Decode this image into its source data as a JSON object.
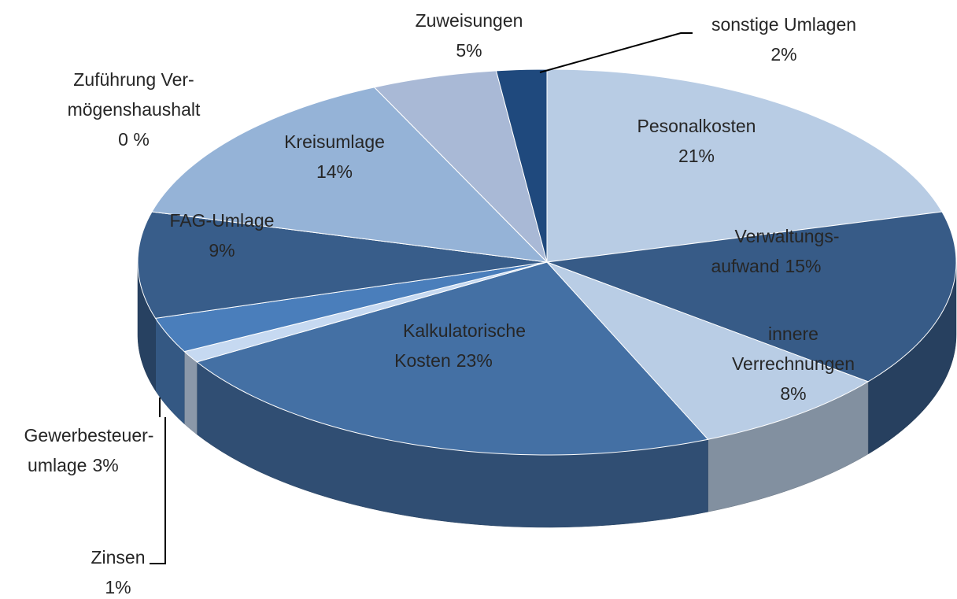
{
  "chart_data": {
    "type": "pie",
    "categories": [
      [
        "Pesonalkosten"
      ],
      [
        "Verwaltungs-",
        "aufwand"
      ],
      [
        "innere",
        "Verrechnungen"
      ],
      [
        "Kalkulatorische",
        "Kosten"
      ],
      [
        "Zinsen"
      ],
      [
        "Gewerbesteuer-",
        "umlage"
      ],
      [
        "FAG-Umlage"
      ],
      [
        "Zuführung Ver-",
        "mögenshaushalt"
      ],
      [
        "Kreisumlage"
      ],
      [
        "Zuweisungen"
      ],
      [
        "sonstige Umlagen"
      ]
    ],
    "values": [
      21,
      15,
      8,
      23,
      1,
      3,
      9,
      0,
      14,
      5,
      2
    ],
    "value_labels": [
      "21%",
      "15%",
      "8%",
      "23%",
      "1%",
      "3%",
      "9%",
      "0 %",
      "14%",
      "5%",
      "2%"
    ],
    "colors": [
      "#b8cce4",
      "#375b87",
      "#b9cde5",
      "#4470a4",
      "#c6d9f1",
      "#4a7ebb",
      "#385d8a",
      "#8eb4e3",
      "#95b3d7",
      "#a9b9d6",
      "#1f497d"
    ]
  }
}
